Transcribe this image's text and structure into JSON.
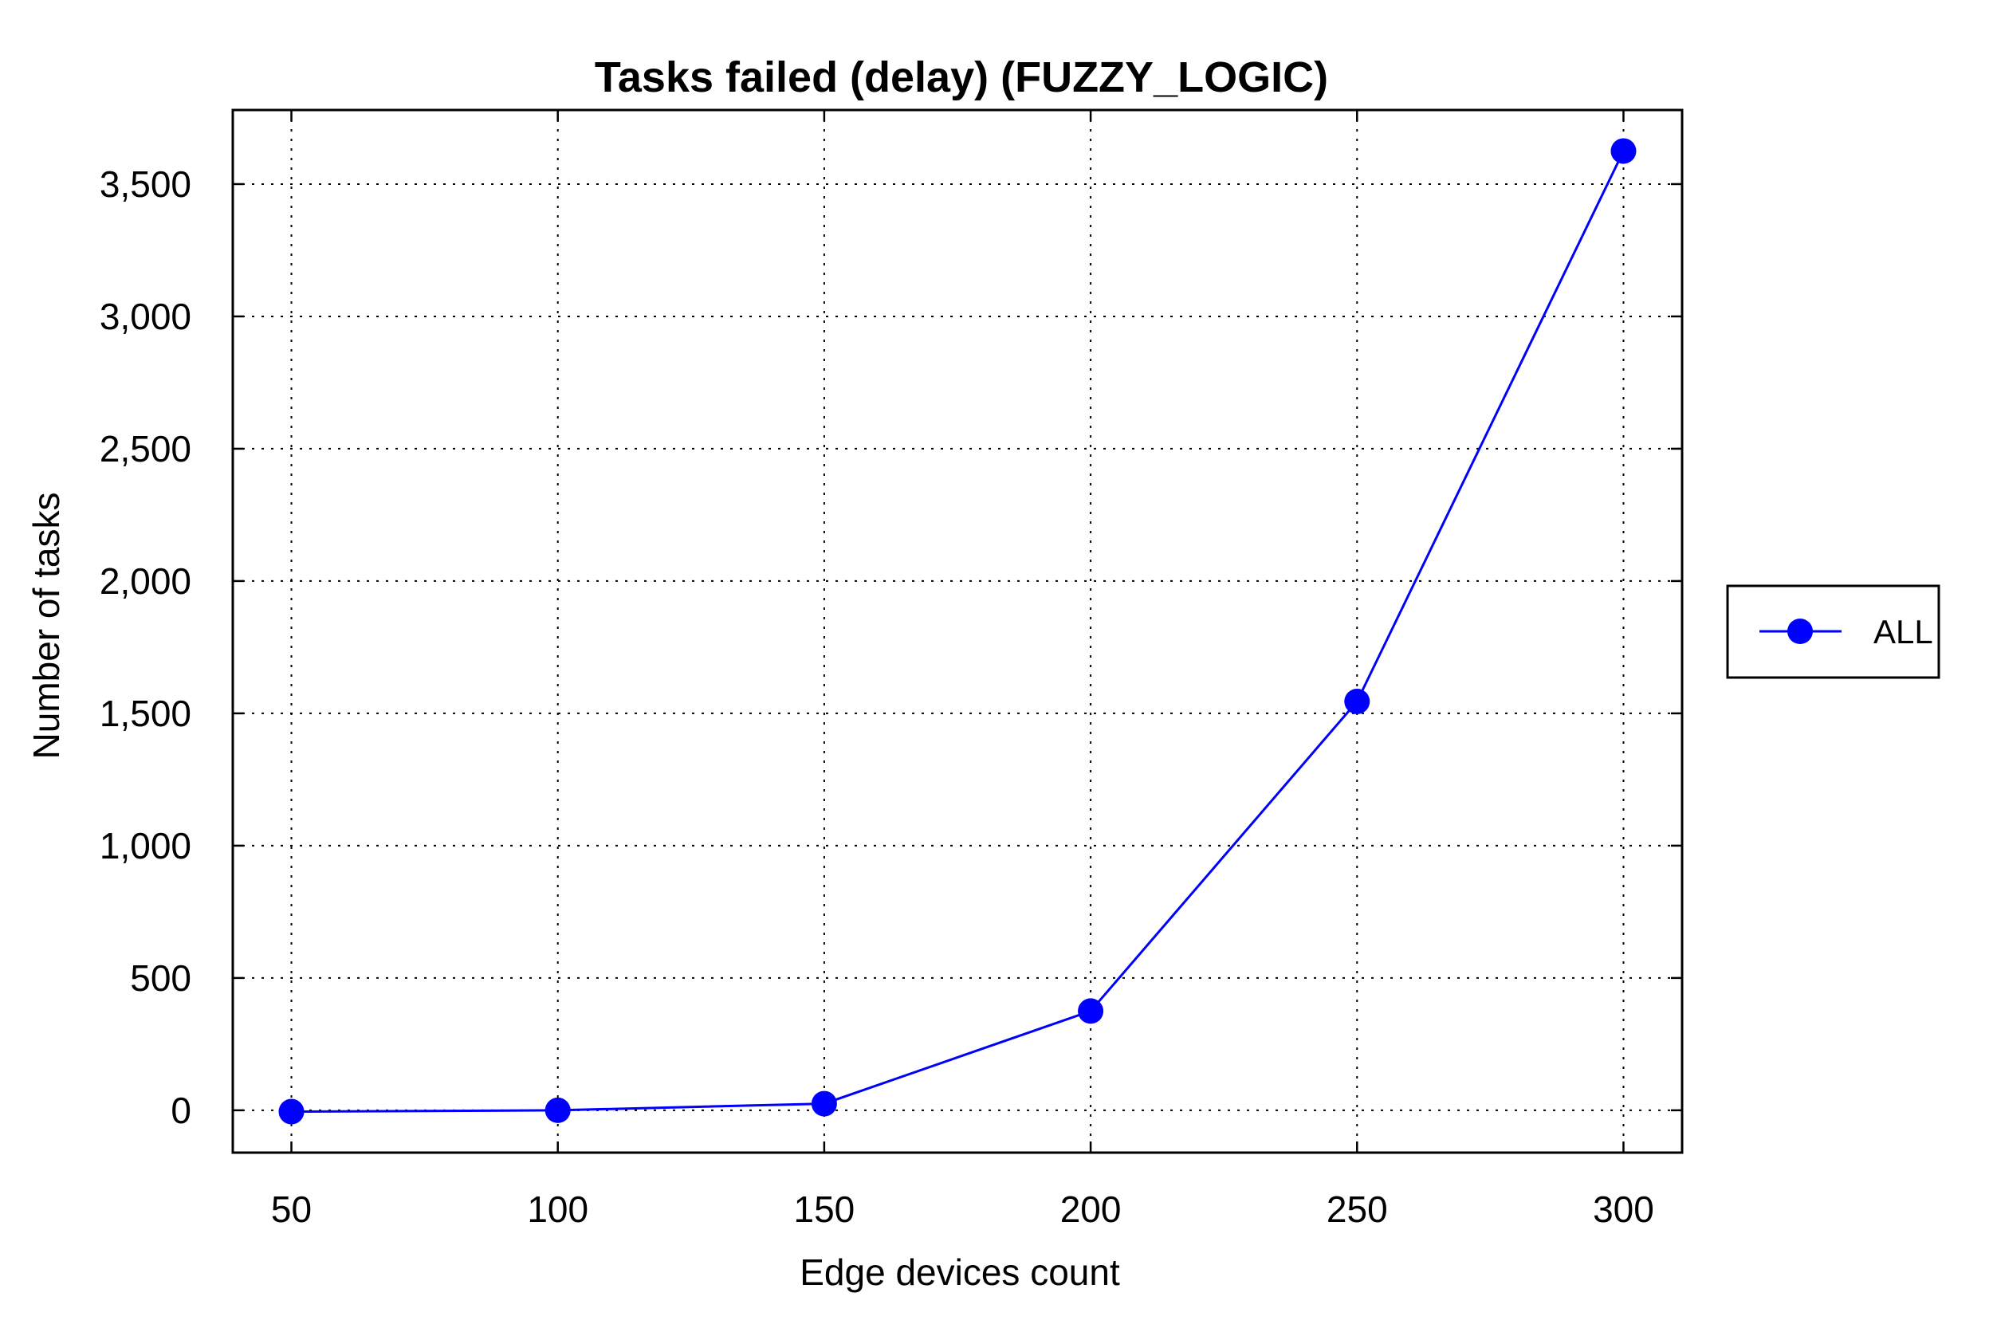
{
  "chart_data": {
    "type": "line",
    "title": "Tasks failed (delay) (FUZZY_LOGIC)",
    "xlabel": "Edge devices count",
    "ylabel": "Number of tasks",
    "x": [
      50,
      100,
      150,
      200,
      250,
      300
    ],
    "x_tick_labels": [
      "50",
      "100",
      "150",
      "200",
      "250",
      "300"
    ],
    "y_ticks": [
      0,
      500,
      1000,
      1500,
      2000,
      2500,
      3000,
      3500
    ],
    "y_tick_labels": [
      "0",
      "500",
      "1,000",
      "1,500",
      "2,000",
      "2,500",
      "3,000",
      "3,500"
    ],
    "xlim": [
      39,
      311
    ],
    "ylim": [
      -160,
      3780
    ],
    "grid": true,
    "legend": {
      "position": "right"
    },
    "series": [
      {
        "name": "ALL",
        "color": "#0000ff",
        "marker": "circle",
        "values": [
          -5,
          0,
          25,
          375,
          1545,
          3625
        ]
      }
    ]
  }
}
